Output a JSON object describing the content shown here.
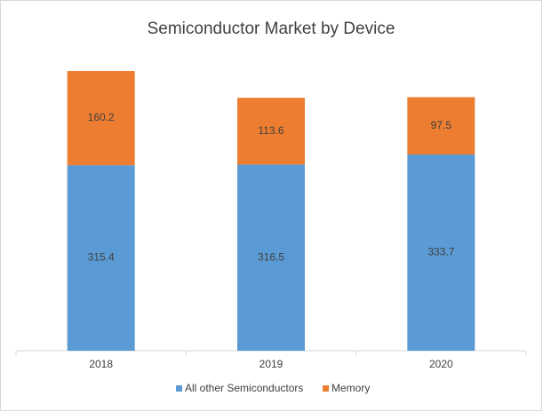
{
  "chart_data": {
    "type": "stacked-bar",
    "title": "Semiconductor Market by Device",
    "categories": [
      "2018",
      "2019",
      "2020"
    ],
    "series": [
      {
        "name": "All other Semiconductors",
        "color": "#5b9bd5",
        "values": [
          315.4,
          316.5,
          333.7
        ]
      },
      {
        "name": "Memory",
        "color": "#ed7d31",
        "values": [
          160.2,
          113.6,
          97.5
        ]
      }
    ]
  }
}
